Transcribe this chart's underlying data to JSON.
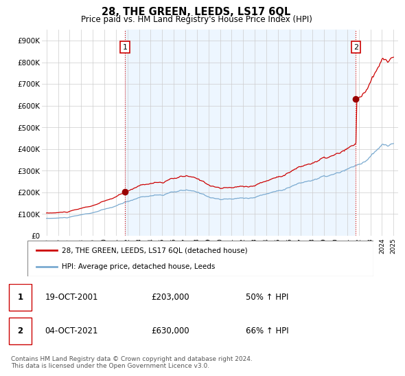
{
  "title": "28, THE GREEN, LEEDS, LS17 6QL",
  "subtitle": "Price paid vs. HM Land Registry's House Price Index (HPI)",
  "line1_label": "28, THE GREEN, LEEDS, LS17 6QL (detached house)",
  "line2_label": "HPI: Average price, detached house, Leeds",
  "line1_color": "#cc0000",
  "line2_color": "#7aaad0",
  "vline_color": "#cc0000",
  "bg_fill_color": "#ddeeff",
  "marker1_x": 2001.79,
  "marker1_y": 203000,
  "marker2_x": 2021.75,
  "marker2_y": 630000,
  "annotation1": [
    "1",
    "19-OCT-2001",
    "£203,000",
    "50% ↑ HPI"
  ],
  "annotation2": [
    "2",
    "04-OCT-2021",
    "£630,000",
    "66% ↑ HPI"
  ],
  "footer": "Contains HM Land Registry data © Crown copyright and database right 2024.\nThis data is licensed under the Open Government Licence v3.0.",
  "ylim": [
    0,
    950000
  ],
  "yticks": [
    0,
    100000,
    200000,
    300000,
    400000,
    500000,
    600000,
    700000,
    800000,
    900000
  ],
  "ytick_labels": [
    "£0",
    "£100K",
    "£200K",
    "£300K",
    "£400K",
    "£500K",
    "£600K",
    "£700K",
    "£800K",
    "£900K"
  ],
  "xmin": 1994.6,
  "xmax": 2025.4,
  "xticks": [
    1995,
    1996,
    1997,
    1998,
    1999,
    2000,
    2001,
    2002,
    2003,
    2004,
    2005,
    2006,
    2007,
    2008,
    2009,
    2010,
    2011,
    2012,
    2013,
    2014,
    2015,
    2016,
    2017,
    2018,
    2019,
    2020,
    2021,
    2022,
    2023,
    2024,
    2025
  ]
}
